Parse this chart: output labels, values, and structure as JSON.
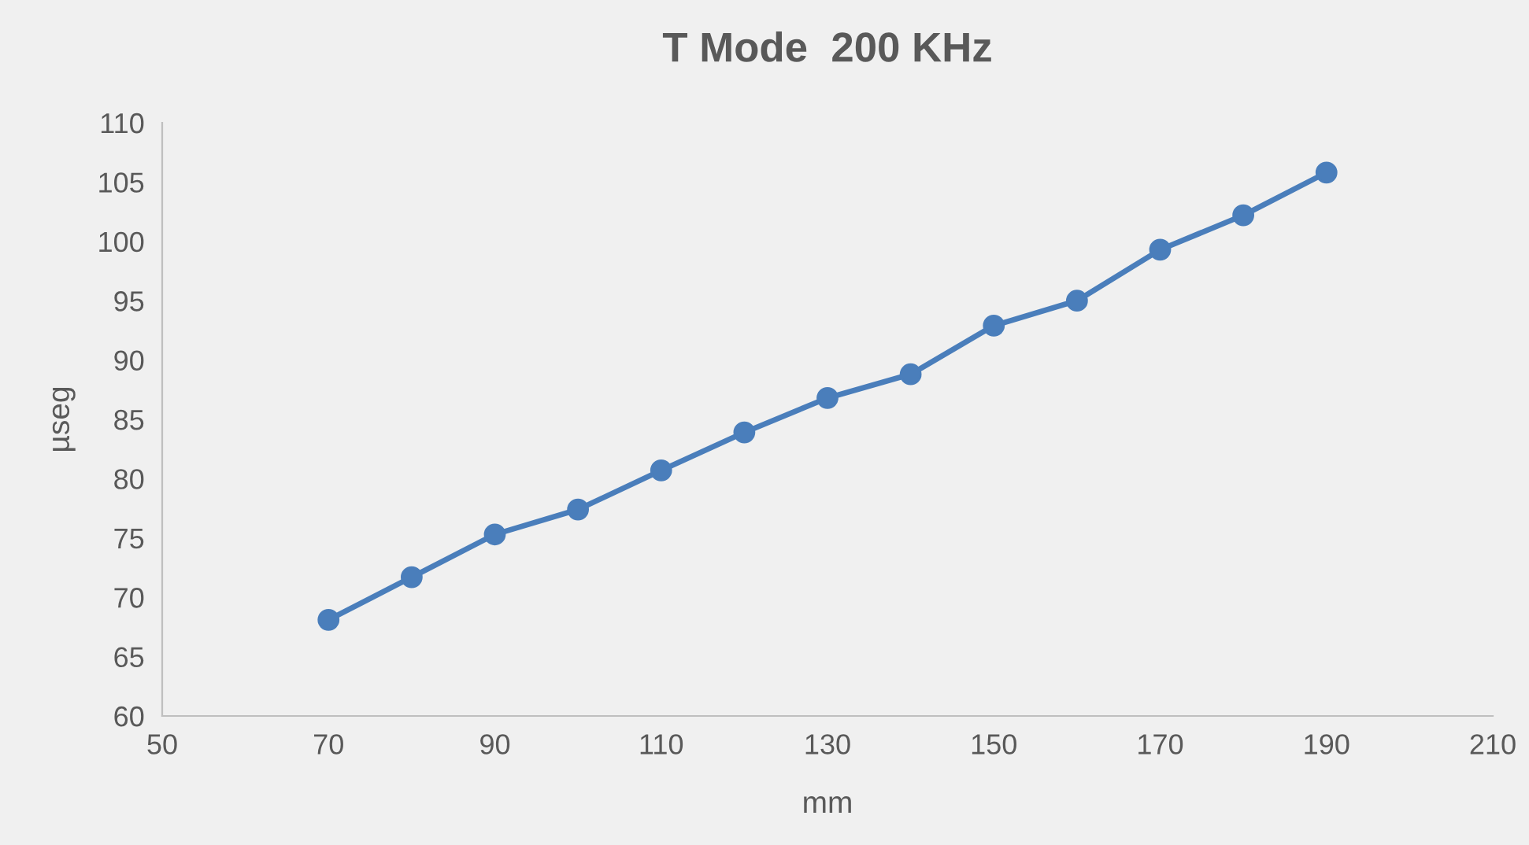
{
  "chart_data": {
    "type": "line",
    "title": "T Mode  200 KHz",
    "xlabel": "mm",
    "ylabel": "µseg",
    "x": [
      70,
      80,
      90,
      100,
      110,
      120,
      130,
      140,
      150,
      160,
      170,
      180,
      190
    ],
    "series": [
      {
        "color": "#4a7ebb",
        "values": [
          68.1,
          71.7,
          75.3,
          77.4,
          80.7,
          83.9,
          86.8,
          88.8,
          92.9,
          95.0,
          99.3,
          102.2,
          105.8
        ]
      }
    ],
    "xlim": [
      50,
      210
    ],
    "xticks": [
      50,
      70,
      90,
      110,
      130,
      150,
      170,
      190,
      210
    ],
    "ylim": [
      60,
      110
    ],
    "yticks": [
      60,
      65,
      70,
      75,
      80,
      85,
      90,
      95,
      100,
      105,
      110
    ],
    "grid": false,
    "legend": false,
    "marker": "circle",
    "line_style": "solid"
  }
}
